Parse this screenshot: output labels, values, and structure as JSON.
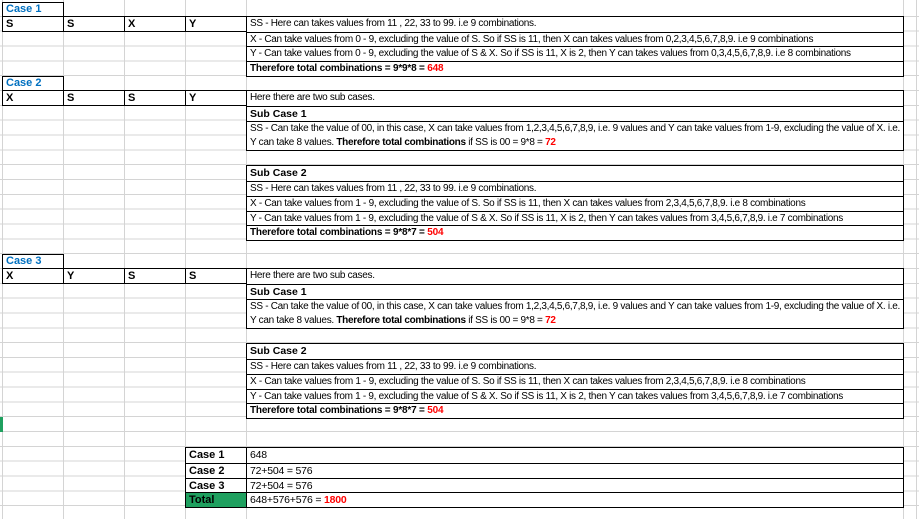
{
  "colors": {
    "case_title_blue": "#0070C0",
    "result_red": "#FF0000",
    "total_green": "#1FA05F",
    "gridline": "#D4D4D4",
    "cell_border": "#000000"
  },
  "case1": {
    "title": "Case 1",
    "letters": [
      "S",
      "S",
      "X",
      "Y"
    ],
    "rows": {
      "ss": "SS - Here can takes values from 11 , 22, 33 to 99. i.e 9 combinations.",
      "x": "X - Can take values from 0 - 9, excluding the value of S. So if SS is 11, then X can takes values from 0,2,3,4,5,6,7,8,9. i.e 9 combinations",
      "y": "Y - Can take values from 0 - 9, excluding the value of S & X. So if SS is 11, X is 2, then Y can takes values from 0,3,4,5,6,7,8,9. i.e 8 combinations",
      "total_runs": [
        {
          "text": "Therefore total combinations = 9*9*8 = ",
          "bold": true
        },
        {
          "text": "648",
          "bold": true,
          "color": "#FF0000"
        }
      ]
    }
  },
  "case2": {
    "title": "Case 2",
    "letters": [
      "X",
      "S",
      "S",
      "Y"
    ],
    "intro": "Here there are two sub cases.",
    "sub1": {
      "title": "Sub Case 1",
      "body_runs": [
        {
          "text": "SS - Can take the value of 00, in this case, X can take values from 1,2,3,4,5,6,7,8,9, i.e. 9 values and Y can take values from 1-9, excluding the value of X. i.e. Y can take 8 values. "
        },
        {
          "text": "Therefore total combinations",
          "bold": true
        },
        {
          "text": " if SS is 00 = 9*8 = "
        },
        {
          "text": "72",
          "bold": true,
          "color": "#FF0000"
        }
      ]
    },
    "sub2": {
      "title": "Sub Case 2",
      "ss": "SS - Here can takes values from 11 , 22, 33 to 99. i.e 9 combinations.",
      "x": "X - Can take values from 1 - 9, excluding the value of S. So if SS is 11, then X can takes values from 2,3,4,5,6,7,8,9. i.e 8 combinations",
      "y": "Y - Can take values from 1 - 9, excluding the value of S & X. So if SS is 11, X is 2, then Y can takes values from 3,4,5,6,7,8,9. i.e 7 combinations",
      "total_runs": [
        {
          "text": "Therefore total combinations = 9*8*7 = ",
          "bold": true
        },
        {
          "text": "504",
          "bold": true,
          "color": "#FF0000"
        }
      ]
    }
  },
  "case3": {
    "title": "Case 3",
    "letters": [
      "X",
      "Y",
      "S",
      "S"
    ],
    "intro": "Here there are two sub cases.",
    "sub1": {
      "title": "Sub Case 1",
      "body_runs": [
        {
          "text": "SS - Can take the value of 00, in this case, X can take values from 1,2,3,4,5,6,7,8,9, i.e. 9 values and Y can take values from 1-9, excluding the value of X. i.e. Y can take 8 values. "
        },
        {
          "text": "Therefore total combinations",
          "bold": true
        },
        {
          "text": " if SS is 00 = 9*8 = "
        },
        {
          "text": "72",
          "bold": true,
          "color": "#FF0000"
        }
      ]
    },
    "sub2": {
      "title": "Sub Case 2",
      "ss": "SS - Here can takes values from 11 , 22, 33 to 99. i.e 9 combinations.",
      "x": "X - Can take values from 1 - 9, excluding the value of S. So if SS is 11, then X can takes values from 2,3,4,5,6,7,8,9. i.e 8 combinations",
      "y": "Y - Can take values from 1 - 9, excluding the value of S & X. So if SS is 11, X is 2, then Y can takes values from 3,4,5,6,7,8,9. i.e 7 combinations",
      "total_runs": [
        {
          "text": "Therefore total combinations = 9*8*7 = ",
          "bold": true
        },
        {
          "text": "504",
          "bold": true,
          "color": "#FF0000"
        }
      ]
    }
  },
  "summary": {
    "rows": [
      {
        "label": "Case 1",
        "value": "648"
      },
      {
        "label": "Case 2",
        "value": "72+504 = 576"
      },
      {
        "label": "Case 3",
        "value": "72+504 = 576"
      }
    ],
    "total_label": "Total",
    "total_runs": [
      {
        "text": "648+576+576 = "
      },
      {
        "text": "1800",
        "bold": true,
        "color": "#FF0000"
      }
    ]
  }
}
